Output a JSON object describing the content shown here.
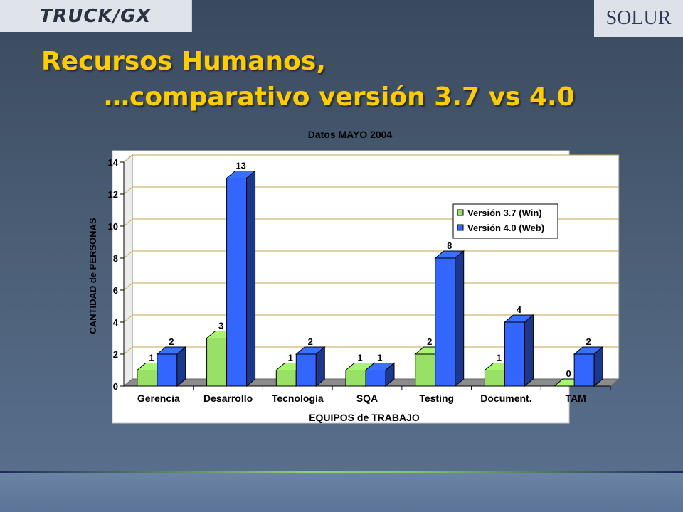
{
  "logos": {
    "left": "TRUCK/GX",
    "right": "SOLUR"
  },
  "title": {
    "line1": "Recursos Humanos,",
    "line2": "…comparativo versión 3.7 vs 4.0"
  },
  "colors": {
    "title": "#ffcc00",
    "series1": "#99e066",
    "series2": "#3366ff"
  },
  "chart_data": {
    "type": "bar",
    "title": "Datos MAYO 2004",
    "xlabel": "EQUIPOS de TRABAJO",
    "ylabel": "CANTIDAD de PERSONAS",
    "categories": [
      "Gerencia",
      "Desarrollo",
      "Tecnología",
      "SQA",
      "Testing",
      "Document.",
      "TAM"
    ],
    "series": [
      {
        "name": "Versión 3.7 (Win)",
        "values": [
          1,
          3,
          1,
          1,
          2,
          1,
          0
        ],
        "color": "#99e066"
      },
      {
        "name": "Versión 4.0 (Web)",
        "values": [
          2,
          13,
          2,
          1,
          8,
          4,
          2
        ],
        "color": "#3366ff"
      }
    ],
    "ylim": [
      0,
      14
    ],
    "yticks": [
      0,
      2,
      4,
      6,
      8,
      10,
      12,
      14
    ],
    "grid": true,
    "legend": "right"
  }
}
